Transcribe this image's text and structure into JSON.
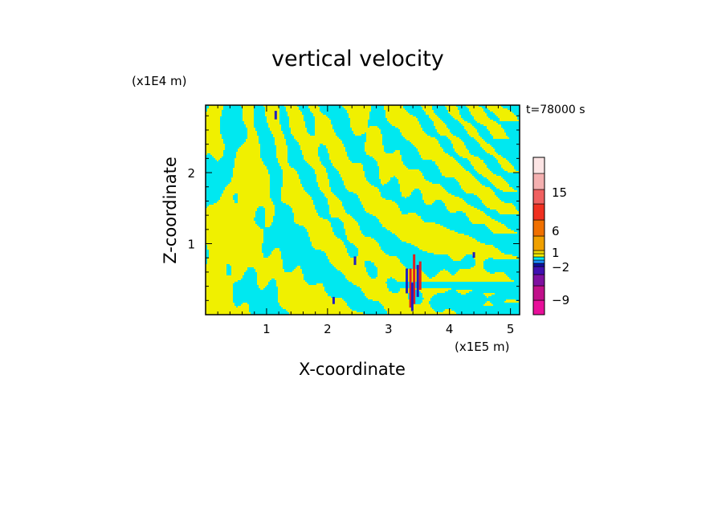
{
  "chart_data": {
    "type": "heatmap",
    "title": "vertical velocity",
    "xlabel": "X-coordinate",
    "ylabel": "Z-coordinate",
    "x_unit": "(x1E5 m)",
    "z_unit": "(x1E4 m)",
    "time_label": "t=78000 s",
    "xlim": [
      0,
      5.15
    ],
    "ylim": [
      0,
      2.95
    ],
    "x_ticks": [
      1,
      2,
      3,
      4,
      5
    ],
    "y_ticks": [
      1,
      2
    ],
    "colorbar": {
      "tick_labels": [
        "15",
        "6",
        "1",
        "−2",
        "−9"
      ],
      "levels": [
        {
          "color": "#e8109a"
        },
        {
          "color": "#c0108a"
        },
        {
          "color": "#7f10a0"
        },
        {
          "color": "#4010b0"
        },
        {
          "color": "#1010a0"
        },
        {
          "color": "#1c8cff"
        },
        {
          "color": "#00e8f0"
        },
        {
          "color": "#f0f000"
        },
        {
          "color": "#f0d800"
        },
        {
          "color": "#f0a000"
        },
        {
          "color": "#f07000"
        },
        {
          "color": "#f03020"
        },
        {
          "color": "#f06060"
        },
        {
          "color": "#f4b0b0"
        },
        {
          "color": "#fce4e4"
        }
      ]
    },
    "field_colors": {
      "positive": "#f0f000",
      "negative": "#00e8f0",
      "background": "#00e8f0"
    },
    "extreme_colors": {
      "strong_down": "#2020c0",
      "strong_up": "#e02020"
    }
  }
}
